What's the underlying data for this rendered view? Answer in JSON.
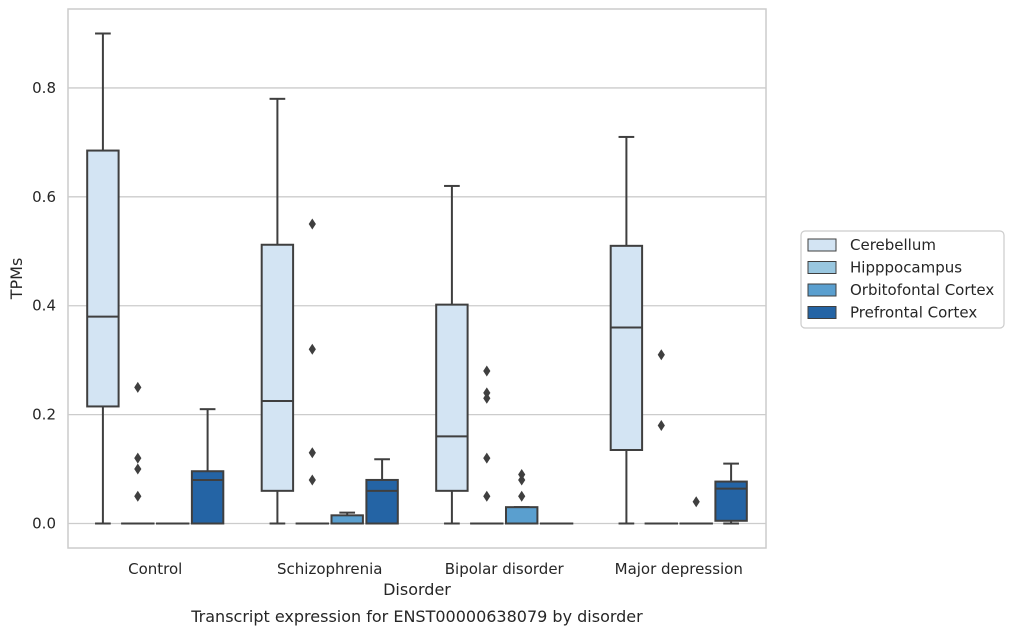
{
  "caption": "Transcript expression for ENST00000638079 by disorder",
  "chart_data": {
    "type": "boxplot",
    "xlabel": "Disorder",
    "ylabel": "TPMs",
    "ylim": [
      -0.045,
      0.945
    ],
    "yticks": [
      0.0,
      0.2,
      0.4,
      0.6,
      0.8
    ],
    "ytick_labels": [
      "0.0",
      "0.2",
      "0.4",
      "0.6",
      "0.8"
    ],
    "grid": "horizontal",
    "legend_position": "right",
    "categories": [
      "Control",
      "Schizophrenia",
      "Bipolar disorder",
      "Major depression"
    ],
    "series": [
      {
        "name": "Cerebellum",
        "color": "#d3e4f3",
        "boxes": [
          {
            "min": 0.0,
            "q1": 0.215,
            "median": 0.38,
            "q3": 0.685,
            "max": 0.9,
            "outliers": []
          },
          {
            "min": 0.0,
            "q1": 0.06,
            "median": 0.225,
            "q3": 0.512,
            "max": 0.78,
            "outliers": []
          },
          {
            "min": 0.0,
            "q1": 0.06,
            "median": 0.16,
            "q3": 0.402,
            "max": 0.62,
            "outliers": []
          },
          {
            "min": 0.0,
            "q1": 0.135,
            "median": 0.36,
            "q3": 0.51,
            "max": 0.71,
            "outliers": []
          }
        ]
      },
      {
        "name": "Hipppocampus",
        "color": "#99c7e0",
        "boxes": [
          {
            "min": 0.0,
            "q1": 0.0,
            "median": 0.0,
            "q3": 0.0,
            "max": 0.0,
            "outliers": [
              0.05,
              0.25,
              0.12,
              0.1
            ]
          },
          {
            "min": 0.0,
            "q1": 0.0,
            "median": 0.0,
            "q3": 0.0,
            "max": 0.0,
            "outliers": [
              0.13,
              0.55,
              0.32,
              0.08
            ]
          },
          {
            "min": 0.0,
            "q1": 0.0,
            "median": 0.0,
            "q3": 0.0,
            "max": 0.0,
            "outliers": [
              0.05,
              0.24,
              0.28,
              0.23,
              0.12
            ]
          },
          {
            "min": 0.0,
            "q1": 0.0,
            "median": 0.0,
            "q3": 0.0,
            "max": 0.0,
            "outliers": [
              0.18,
              0.31
            ]
          }
        ]
      },
      {
        "name": "Orbitofontal Cortex",
        "color": "#5a9fcf",
        "boxes": [
          {
            "min": 0.0,
            "q1": 0.0,
            "median": 0.0,
            "q3": 0.0,
            "max": 0.0,
            "outliers": []
          },
          {
            "min": 0.0,
            "q1": 0.0,
            "median": 0.0,
            "q3": 0.015,
            "max": 0.02,
            "outliers": []
          },
          {
            "min": 0.0,
            "q1": 0.0,
            "median": 0.0,
            "q3": 0.03,
            "max": 0.03,
            "outliers": [
              0.09,
              0.08,
              0.05
            ]
          },
          {
            "min": 0.0,
            "q1": 0.0,
            "median": 0.0,
            "q3": 0.0,
            "max": 0.0,
            "outliers": [
              0.04
            ]
          }
        ]
      },
      {
        "name": "Prefrontal Cortex",
        "color": "#2464a5",
        "boxes": [
          {
            "min": 0.0,
            "q1": 0.0,
            "median": 0.08,
            "q3": 0.096,
            "max": 0.21,
            "outliers": []
          },
          {
            "min": 0.0,
            "q1": 0.0,
            "median": 0.06,
            "q3": 0.08,
            "max": 0.118,
            "outliers": []
          },
          {
            "min": 0.0,
            "q1": 0.0,
            "median": 0.0,
            "q3": 0.0,
            "max": 0.0,
            "outliers": []
          },
          {
            "min": 0.0,
            "q1": 0.005,
            "median": 0.064,
            "q3": 0.077,
            "max": 0.11,
            "outliers": []
          }
        ]
      }
    ]
  }
}
